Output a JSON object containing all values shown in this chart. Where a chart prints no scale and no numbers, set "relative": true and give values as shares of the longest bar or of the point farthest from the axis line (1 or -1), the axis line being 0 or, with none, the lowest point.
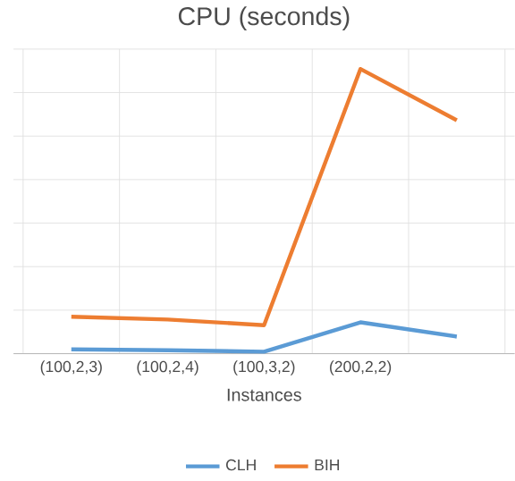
{
  "chart_data": {
    "type": "line",
    "title": "CPU (seconds)",
    "xlabel": "Instances",
    "relative": true,
    "grid": true,
    "legend": "bottom",
    "categories": [
      "(100,2,3)",
      "(100,2,4)",
      "(100,3,2)",
      "(200,2,2)",
      null
    ],
    "series": [
      {
        "name": "CLH",
        "color": "#5b9bd5",
        "values": [
          0.015,
          0.012,
          0.007,
          0.11,
          0.06
        ]
      },
      {
        "name": "BIH",
        "color": "#ed7d31",
        "values": [
          0.13,
          0.12,
          0.1,
          1.0,
          0.82
        ]
      }
    ]
  }
}
